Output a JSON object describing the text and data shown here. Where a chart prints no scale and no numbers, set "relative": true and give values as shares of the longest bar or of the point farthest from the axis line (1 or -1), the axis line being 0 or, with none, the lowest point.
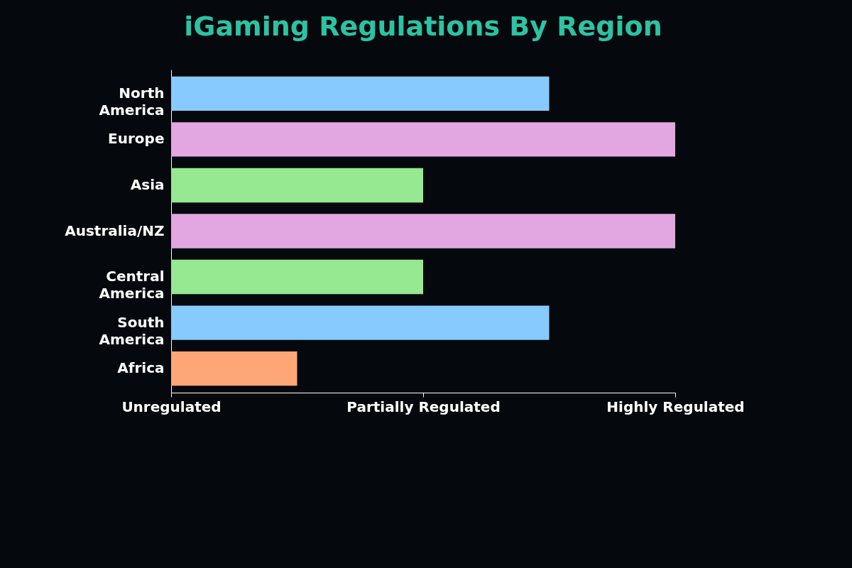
{
  "chart_data": {
    "type": "bar",
    "orientation": "horizontal",
    "title": "iGaming  Regulations By Region",
    "relative": true,
    "categories": [
      "North America",
      "Europe",
      "Asia",
      "Australia/NZ",
      "Central America",
      "South America",
      "Africa"
    ],
    "values": [
      0.75,
      1,
      0.5,
      1,
      0.5,
      0.75,
      0.25
    ],
    "colors": [
      "#87cafe",
      "#e2a7e0",
      "#96e891",
      "#e2a7e0",
      "#96e891",
      "#87cafe",
      "#ffa677"
    ],
    "annotations": [
      "Unregulated",
      "Partially Regulated",
      "Highly Regulated"
    ],
    "grid": false
  }
}
